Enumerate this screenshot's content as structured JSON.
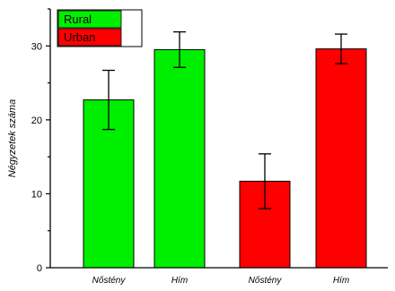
{
  "chart_data": {
    "type": "bar",
    "ylabel": "Négyzetek száma",
    "xlabel": "",
    "ylim": [
      0,
      35
    ],
    "yticks": [
      0,
      10,
      20,
      30
    ],
    "categories": [
      "Nőstény",
      "Hím",
      "Nőstény",
      "Hím"
    ],
    "bars": [
      {
        "category": "Nőstény",
        "group": "Rural",
        "value": 22.7,
        "error": 4.0
      },
      {
        "category": "Hím",
        "group": "Rural",
        "value": 29.5,
        "error": 2.4
      },
      {
        "category": "Nőstény",
        "group": "Urban",
        "value": 11.7,
        "error": 3.7
      },
      {
        "category": "Hím",
        "group": "Urban",
        "value": 29.6,
        "error": 2.0
      }
    ],
    "legend": {
      "placement": "top-left",
      "entries": [
        {
          "label": "Rural",
          "color": "#00ee00"
        },
        {
          "label": "Urban",
          "color": "#ff0000"
        }
      ]
    },
    "grid": false
  }
}
